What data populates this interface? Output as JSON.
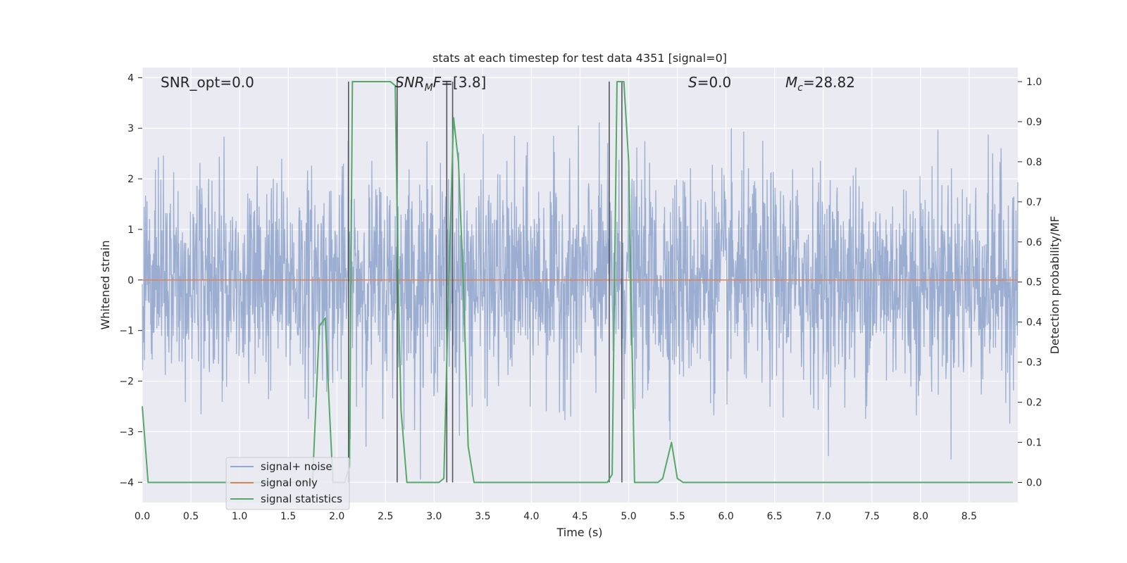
{
  "chart_data": {
    "type": "line",
    "title": "stats at each timestep for test data 4351 [signal=0]",
    "xlabel": "Time (s)",
    "ylabel_left": "Whitened strain",
    "ylabel_right": "Detection probability/MF",
    "xlim": [
      0.0,
      9.0
    ],
    "ylim_left": [
      -4.4,
      4.2
    ],
    "ylim_right": [
      -0.05,
      1.035
    ],
    "x_ticks": [
      "0.0",
      "0.5",
      "1.0",
      "1.5",
      "2.0",
      "2.5",
      "3.0",
      "3.5",
      "4.0",
      "4.5",
      "5.0",
      "5.5",
      "6.0",
      "6.5",
      "7.0",
      "7.5",
      "8.0",
      "8.5"
    ],
    "x_tick_values": [
      0.0,
      0.5,
      1.0,
      1.5,
      2.0,
      2.5,
      3.0,
      3.5,
      4.0,
      4.5,
      5.0,
      5.5,
      6.0,
      6.5,
      7.0,
      7.5,
      8.0,
      8.5
    ],
    "y_left_ticks": [
      "4",
      "3",
      "2",
      "1",
      "0",
      "−1",
      "−2",
      "−3",
      "−4"
    ],
    "y_left_tick_values": [
      4,
      3,
      2,
      1,
      0,
      -1,
      -2,
      -3,
      -4
    ],
    "y_right_ticks": [
      "1.0",
      "0.9",
      "0.8",
      "0.7",
      "0.6",
      "0.5",
      "0.4",
      "0.3",
      "0.2",
      "0.1",
      "0.0"
    ],
    "y_right_tick_values": [
      1.0,
      0.9,
      0.8,
      0.7,
      0.6,
      0.5,
      0.4,
      0.3,
      0.2,
      0.1,
      0.0
    ],
    "grid": true,
    "legend_position": "lower-left",
    "annotations": [
      {
        "text": "SNR_opt=0.0",
        "x": 0.2
      },
      {
        "text": "SNR_MF=[3.8]",
        "x": 2.6
      },
      {
        "text": "S=0.0",
        "x": 5.6
      },
      {
        "text": "M_c=28.82",
        "x": 6.6
      }
    ],
    "series": [
      {
        "name": "signal+ noise",
        "color": "#4c72b0",
        "axis": "left",
        "note": "whitened noisy strain, approx. within [-4, 3.8]"
      },
      {
        "name": "signal only",
        "color": "#dd8452",
        "axis": "left",
        "values_constant": 0.0
      },
      {
        "name": "signal statistics",
        "color": "#55a868",
        "axis": "right",
        "x": [
          0.0,
          0.06,
          0.13,
          1.6,
          1.75,
          1.82,
          1.88,
          1.92,
          1.96,
          2.02,
          2.08,
          2.13,
          2.16,
          2.2,
          2.55,
          2.6,
          2.63,
          2.66,
          2.72,
          2.78,
          3.05,
          3.1,
          3.15,
          3.2,
          3.25,
          3.3,
          3.35,
          3.41,
          3.47,
          4.78,
          4.83,
          4.88,
          4.92,
          4.95,
          5.0,
          5.06,
          5.3,
          5.35,
          5.38,
          5.44,
          5.5,
          5.56,
          8.95
        ],
        "y": [
          0.19,
          0.0,
          0.0,
          0.0,
          0.0,
          0.39,
          0.41,
          0.2,
          0.0,
          0.0,
          0.0,
          0.04,
          1.0,
          1.0,
          1.0,
          0.99,
          0.5,
          0.18,
          0.0,
          0.0,
          0.0,
          0.01,
          0.5,
          0.91,
          0.8,
          0.5,
          0.09,
          0.0,
          0.0,
          0.0,
          0.02,
          1.0,
          1.0,
          1.0,
          0.8,
          0.0,
          0.0,
          0.01,
          0.04,
          0.1,
          0.01,
          0.0,
          0.0
        ]
      },
      {
        "name": "markers",
        "color": "#55575f",
        "axis": "right",
        "vertical_lines_x": [
          2.12,
          2.62,
          3.13,
          3.19,
          4.8,
          4.93
        ]
      }
    ]
  },
  "legend": {
    "items": [
      {
        "label": "signal+ noise",
        "color": "#4c72b0"
      },
      {
        "label": "signal only",
        "color": "#dd8452"
      },
      {
        "label": "signal statistics",
        "color": "#55a868"
      }
    ]
  }
}
